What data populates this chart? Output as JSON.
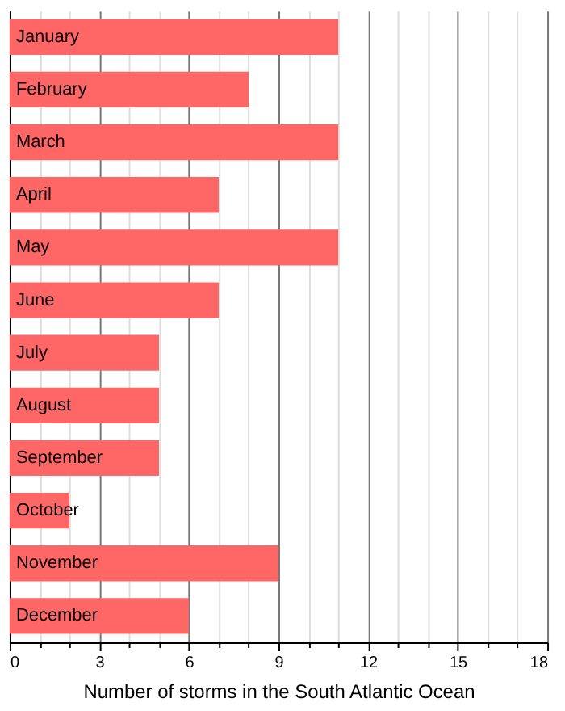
{
  "chart_data": {
    "type": "bar",
    "orientation": "horizontal",
    "xlabel": "Number of storms in the South Atlantic Ocean",
    "categories": [
      "January",
      "February",
      "March",
      "April",
      "May",
      "June",
      "July",
      "August",
      "September",
      "October",
      "November",
      "December"
    ],
    "values": [
      11,
      8,
      11,
      7,
      11,
      7,
      5,
      5,
      5,
      2,
      9,
      6
    ],
    "color": "#ff6666",
    "xlim": [
      0,
      18
    ],
    "xticks": [
      0,
      {
        "value": 1,
        "label": null
      },
      {
        "value": 2,
        "label": null
      },
      3,
      {
        "value": 4,
        "label": null
      },
      {
        "value": 5,
        "label": null
      },
      6,
      {
        "value": 7,
        "label": null
      },
      {
        "value": 8,
        "label": null
      },
      9,
      {
        "value": 10,
        "label": null
      },
      {
        "value": 11,
        "label": null
      },
      12,
      {
        "value": 13,
        "label": null
      },
      {
        "value": 14,
        "label": null
      },
      15,
      {
        "value": 16,
        "label": null
      },
      {
        "value": 17,
        "label": null
      },
      18
    ],
    "grid": "x",
    "tick_labels": "x"
  }
}
